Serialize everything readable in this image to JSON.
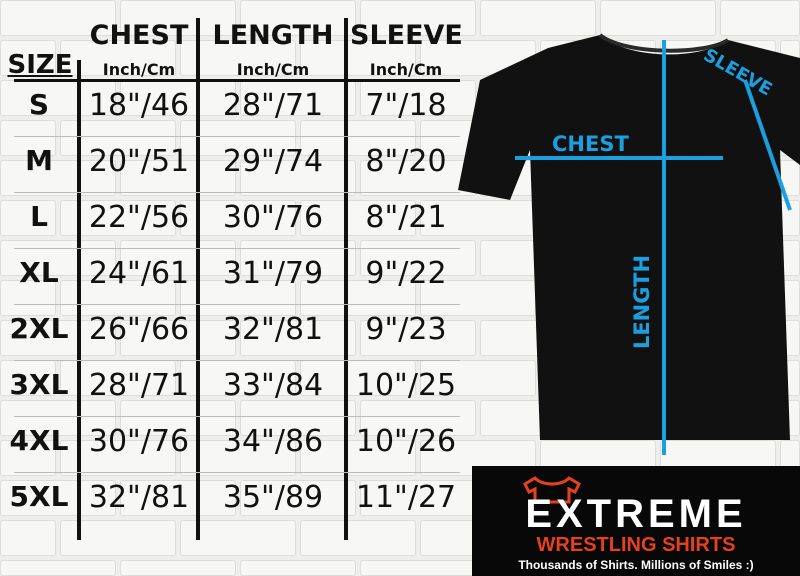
{
  "table": {
    "size_header": "SIZE",
    "columns": [
      {
        "title": "CHEST",
        "unit": "Inch/Cm"
      },
      {
        "title": "LENGTH",
        "unit": "Inch/Cm"
      },
      {
        "title": "SLEEVE",
        "unit": "Inch/Cm"
      }
    ],
    "rows": [
      {
        "size": "S",
        "chest": "18\"/46",
        "length": "28\"/71",
        "sleeve": "7\"/18"
      },
      {
        "size": "M",
        "chest": "20\"/51",
        "length": "29\"/74",
        "sleeve": "8\"/20"
      },
      {
        "size": "L",
        "chest": "22\"/56",
        "length": "30\"/76",
        "sleeve": "8\"/21"
      },
      {
        "size": "XL",
        "chest": "24\"/61",
        "length": "31\"/79",
        "sleeve": "9\"/22"
      },
      {
        "size": "2XL",
        "chest": "26\"/66",
        "length": "32\"/81",
        "sleeve": "9\"/23"
      },
      {
        "size": "3XL",
        "chest": "28\"/71",
        "length": "33\"/84",
        "sleeve": "10\"/25"
      },
      {
        "size": "4XL",
        "chest": "30\"/76",
        "length": "34\"/86",
        "sleeve": "10\"/26"
      },
      {
        "size": "5XL",
        "chest": "32\"/81",
        "length": "35\"/89",
        "sleeve": "11\"/27"
      }
    ]
  },
  "diagram": {
    "chest_label": "CHEST",
    "length_label": "LENGTH",
    "sleeve_label": "SLEEVE",
    "measure_color": "#1a9fe0",
    "shirt_color": "#111111"
  },
  "logo": {
    "name": "EXTREME",
    "subtitle": "WRESTLING SHIRTS",
    "tagline": "Thousands of Shirts. Millions of Smiles :)",
    "accent_color": "#e8401c"
  }
}
